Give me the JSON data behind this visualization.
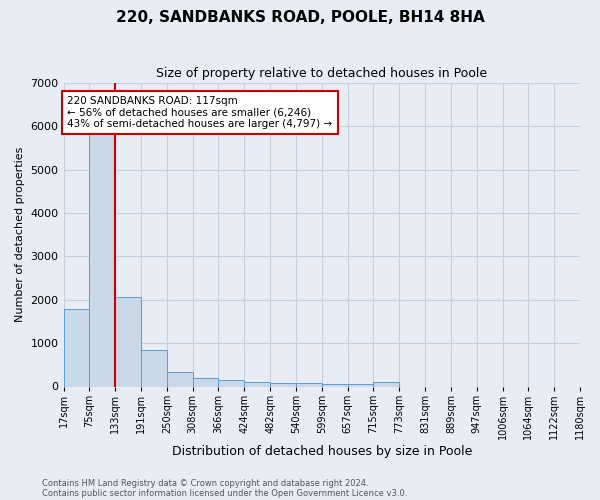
{
  "title": "220, SANDBANKS ROAD, POOLE, BH14 8HA",
  "subtitle": "Size of property relative to detached houses in Poole",
  "xlabel": "Distribution of detached houses by size in Poole",
  "ylabel": "Number of detached properties",
  "footnote1": "Contains HM Land Registry data © Crown copyright and database right 2024.",
  "footnote2": "Contains public sector information licensed under the Open Government Licence v3.0.",
  "bin_labels": [
    "17sqm",
    "75sqm",
    "133sqm",
    "191sqm",
    "250sqm",
    "308sqm",
    "366sqm",
    "424sqm",
    "482sqm",
    "540sqm",
    "599sqm",
    "657sqm",
    "715sqm",
    "773sqm",
    "831sqm",
    "889sqm",
    "947sqm",
    "1006sqm",
    "1064sqm",
    "1122sqm",
    "1180sqm"
  ],
  "bar_heights": [
    1780,
    5820,
    2060,
    840,
    340,
    200,
    140,
    110,
    90,
    75,
    65,
    60,
    110,
    0,
    0,
    0,
    0,
    0,
    0,
    0
  ],
  "bar_color": "#c9d9e8",
  "bar_edge_color": "#5b9bd5",
  "grid_color": "#c8d0de",
  "bg_color": "#e8edf5",
  "red_line_bin": 2,
  "annotation_text": "220 SANDBANKS ROAD: 117sqm\n← 56% of detached houses are smaller (6,246)\n43% of semi-detached houses are larger (4,797) →",
  "annotation_box_color": "#ffffff",
  "annotation_box_edge": "#cc0000",
  "red_line_color": "#cc0000",
  "ylim": [
    0,
    7000
  ],
  "yticks": [
    0,
    1000,
    2000,
    3000,
    4000,
    5000,
    6000,
    7000
  ]
}
